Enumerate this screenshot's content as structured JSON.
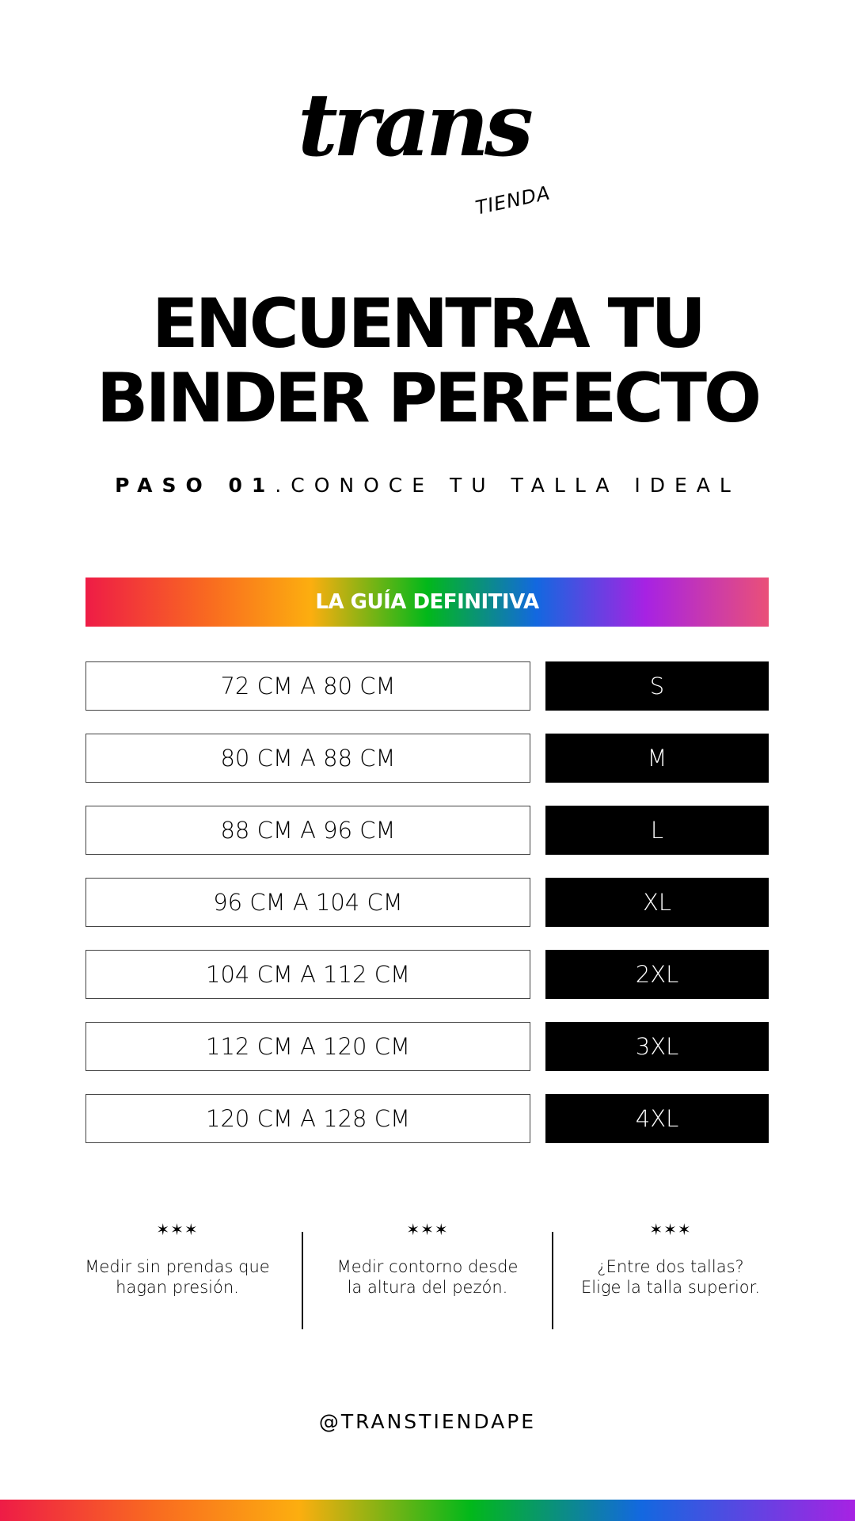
{
  "logo": {
    "main": "trans",
    "sub": "TIENDA"
  },
  "title": {
    "line1": "ENCUENTRA TU",
    "line2": "BINDER PERFECTO"
  },
  "subtitle": {
    "step": "PASO 01",
    "text": ".CONOCE TU TALLA IDEAL"
  },
  "banner": {
    "label": "LA GUÍA DEFINITIVA"
  },
  "sizes": [
    {
      "range": "72 CM A 80 CM",
      "size": "S"
    },
    {
      "range": "80 CM A 88 CM",
      "size": "M"
    },
    {
      "range": "88 CM A 96 CM",
      "size": "L"
    },
    {
      "range": "96 CM A 104 CM",
      "size": "XL"
    },
    {
      "range": "104 CM A 112 CM",
      "size": "2XL"
    },
    {
      "range": "112 CM A 120 CM",
      "size": "3XL"
    },
    {
      "range": "120 CM A 128 CM",
      "size": "4XL"
    }
  ],
  "notes": [
    {
      "stars": "✶✶✶",
      "text": "Medir sin prendas que hagan presión."
    },
    {
      "stars": "✶✶✶",
      "text": "Medir contorno desde la altura del pezón."
    },
    {
      "stars": "✶✶✶",
      "text": "¿Entre dos tallas? Elige la talla superior."
    }
  ],
  "footer": {
    "handle": "@TRANSTIENDAPE"
  },
  "colors": {
    "gradient": [
      "#ee1c46",
      "#f96a20",
      "#fcae0f",
      "#02b81a",
      "#1368e0",
      "#a722e3",
      "#ea5078"
    ],
    "size_bg": "#000000"
  }
}
